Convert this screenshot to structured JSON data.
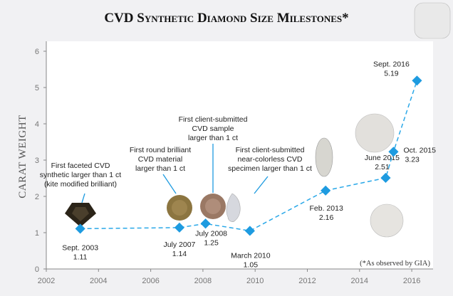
{
  "chart_data": {
    "type": "line",
    "title": "CVD Synthetic Diamond Size Milestones*",
    "xlabel": "",
    "ylabel": "CARAT WEIGHT",
    "xlim": [
      2002,
      2016.8
    ],
    "ylim": [
      0,
      6.3
    ],
    "xticks": [
      "2002",
      "2004",
      "2006",
      "2008",
      "2010",
      "2012",
      "2014",
      "2016"
    ],
    "yticks": [
      "0",
      "1",
      "2",
      "3",
      "4",
      "5",
      "6"
    ],
    "grid": false,
    "line_style": "dashed",
    "color": "#1e9be0",
    "marker": "diamond",
    "points": [
      {
        "x": 2003.3,
        "y": 1.11,
        "date": "Sept. 2003",
        "value": "1.11"
      },
      {
        "x": 2007.1,
        "y": 1.14,
        "date": "July 2007",
        "value": "1.14"
      },
      {
        "x": 2008.1,
        "y": 1.25,
        "date": "July 2008",
        "value": "1.25"
      },
      {
        "x": 2009.8,
        "y": 1.05,
        "date": "March 2010",
        "value": "1.05"
      },
      {
        "x": 2012.7,
        "y": 2.16,
        "date": "Feb. 2013",
        "value": "2.16"
      },
      {
        "x": 2015.0,
        "y": 2.51,
        "date": "June 2015",
        "value": "2.51"
      },
      {
        "x": 2015.3,
        "y": 3.23,
        "date": "Oct. 2015",
        "value": "3.23"
      },
      {
        "x": 2016.2,
        "y": 5.19,
        "date": "Sept. 2016",
        "value": "5.19"
      }
    ],
    "annotations": [
      {
        "lines": [
          "First faceted CVD",
          "synthetic larger than 1 ct",
          "(kite modified brilliant)"
        ]
      },
      {
        "lines": [
          "First round brilliant",
          "CVD material",
          "larger than 1 ct"
        ]
      },
      {
        "lines": [
          "First client-submitted",
          "CVD sample",
          "larger than 1 ct"
        ]
      },
      {
        "lines": [
          "First client-submitted",
          "near-colorless CVD",
          "specimen larger than 1 ct"
        ]
      }
    ],
    "note": "(*As observed by GIA)"
  }
}
